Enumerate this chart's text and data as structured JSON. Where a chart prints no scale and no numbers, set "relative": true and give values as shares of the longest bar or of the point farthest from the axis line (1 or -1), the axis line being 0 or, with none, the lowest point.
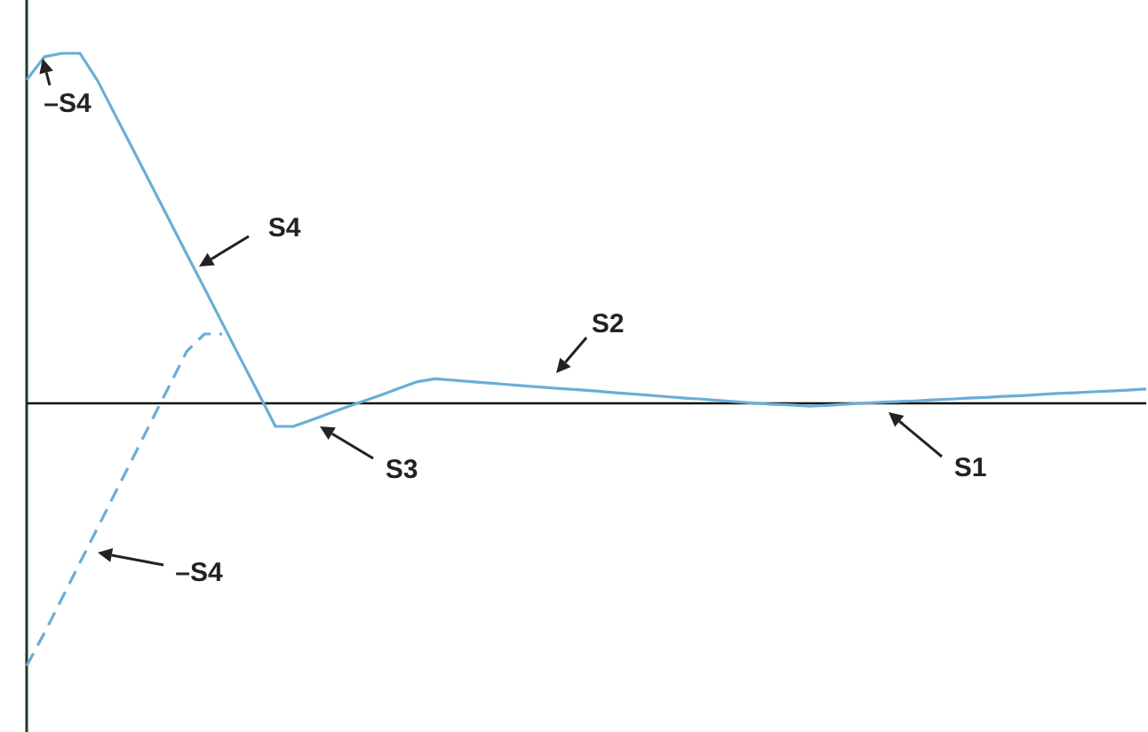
{
  "chart_data": {
    "type": "line",
    "relative": true,
    "marker": "none",
    "categories": [
      null,
      null,
      null,
      null,
      null,
      null,
      null,
      null,
      null,
      null,
      null,
      null,
      null,
      null,
      null,
      null,
      null,
      null,
      null,
      null,
      null,
      null,
      null,
      null,
      null,
      null,
      null,
      null,
      null,
      null,
      null,
      null,
      null,
      null,
      null,
      null,
      null,
      null,
      null,
      null,
      null,
      null,
      null,
      null,
      null,
      null,
      null,
      null,
      null,
      null,
      null,
      null,
      null,
      null,
      null,
      null,
      null,
      null,
      null,
      null,
      null,
      null,
      null,
      null
    ],
    "series": [
      {
        "color": "#6aaed6",
        "line_style": "solid",
        "values": [
          0.924,
          0.99,
          1,
          1,
          0.921,
          0.822,
          0.724,
          0.625,
          0.526,
          0.427,
          0.329,
          0.23,
          0.131,
          0.033,
          -0.066,
          -0.066,
          -0.048,
          -0.029,
          -0.011,
          0.007,
          0.025,
          0.044,
          0.062,
          0.07,
          0.066,
          0.062,
          0.058,
          0.054,
          0.05,
          0.046,
          0.042,
          0.039,
          0.035,
          0.031,
          0.027,
          0.023,
          0.019,
          0.015,
          0.012,
          0.008,
          0.004,
          0,
          -0.003,
          -0.005,
          -0.008,
          -0.006,
          -0.003,
          0,
          0.003,
          0.005,
          0.007,
          0.01,
          0.012,
          0.015,
          0.017,
          0.02,
          0.022,
          0.025,
          0.028,
          0.03,
          0.033,
          0.035,
          0.038,
          0.041
        ]
      },
      {
        "color": "#6aaed6",
        "line_style": "dashed",
        "values": [
          -0.75,
          -0.656,
          -0.556,
          -0.455,
          -0.355,
          -0.254,
          -0.154,
          -0.053,
          0.047,
          0.148,
          0.198,
          0.198,
          null,
          null,
          null,
          null,
          null,
          null,
          null,
          null,
          null,
          null,
          null,
          null,
          null,
          null,
          null,
          null,
          null,
          null,
          null,
          null,
          null,
          null,
          null,
          null,
          null,
          null,
          null,
          null,
          null,
          null,
          null,
          null,
          null,
          null,
          null,
          null,
          null,
          null,
          null,
          null,
          null,
          null,
          null,
          null,
          null,
          null,
          null,
          null,
          null,
          null,
          null,
          null
        ]
      }
    ],
    "annotations": [
      "S4",
      "–S4",
      "S2",
      "S3",
      "S1",
      "–S4"
    ]
  }
}
